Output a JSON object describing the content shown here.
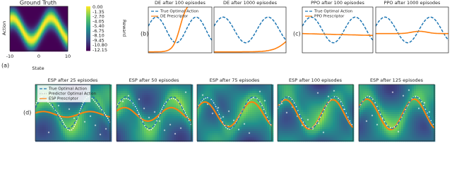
{
  "panel_labels": [
    "(a)",
    "(b)",
    "(c)",
    "(d)"
  ],
  "ground_truth": {
    "title": "Ground Truth",
    "x_label": "State",
    "y_label": "Action",
    "x_ticks": [
      "-10",
      "0",
      "10"
    ],
    "colorbar_label": "Reward",
    "colorbar_ticks": [
      "0.00",
      "-1.35",
      "-2.70",
      "-4.05",
      "-5.40",
      "-6.75",
      "-8.10",
      "-9.45",
      "-10.80",
      "-12.15"
    ]
  },
  "de": {
    "titles": [
      "DE after 100 episodes",
      "DE after 1000 episodes"
    ],
    "legend": [
      "True Optimal Action",
      "DE Prescriptor"
    ]
  },
  "ppo": {
    "titles": [
      "PPO after 100 episodes",
      "PPO after 1000 episodes"
    ],
    "legend": [
      "True Optimal Action",
      "PPO Prescriptor"
    ]
  },
  "esp": {
    "titles": [
      "ESP after 25 episodes",
      "ESP after 50 episodes",
      "ESP after 75 episodes",
      "ESP after 100 episodes",
      "ESP after 125 episodes"
    ],
    "legend": [
      "True Optimal Action",
      "Predictor Optimal Action",
      "ESP Prescriptor"
    ]
  }
}
